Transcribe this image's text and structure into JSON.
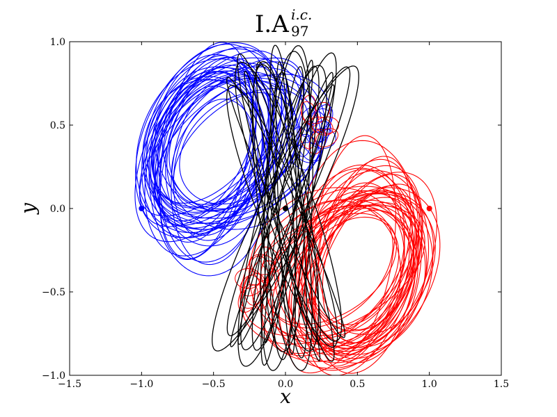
{
  "chart_data": {
    "type": "line",
    "title": {
      "main": "I.A",
      "superscript": "i.c.",
      "subscript": "97"
    },
    "xlabel": "x",
    "ylabel": "y",
    "xlim": [
      -1.5,
      1.5
    ],
    "ylim": [
      -1.0,
      1.0
    ],
    "xticks": [
      -1.5,
      -1.0,
      -0.5,
      0.0,
      0.5,
      1.0,
      1.5
    ],
    "xtick_labels": [
      "−1.5",
      "−1.0",
      "−0.5",
      "0.0",
      "0.5",
      "1.0",
      "1.5"
    ],
    "yticks": [
      -1.0,
      -0.5,
      0.0,
      0.5,
      1.0
    ],
    "ytick_labels": [
      "−1.0",
      "−0.5",
      "0.0",
      "0.5",
      "1.0"
    ],
    "grid": false,
    "series": [
      {
        "color": "#0000ff",
        "initial_position": [
          -1.0,
          0.0
        ],
        "extent": {
          "x": [
            -1.05,
            0.55
          ],
          "y": [
            -0.92,
            0.97
          ]
        }
      },
      {
        "color": "#ff0000",
        "initial_position": [
          1.0,
          0.0
        ],
        "extent": {
          "x": [
            -0.55,
            1.05
          ],
          "y": [
            -0.97,
            0.92
          ]
        }
      },
      {
        "color": "#000000",
        "initial_position": [
          0.0,
          0.0
        ],
        "extent": {
          "x": [
            -0.8,
            0.8
          ],
          "y": [
            -0.97,
            0.97
          ]
        }
      }
    ]
  }
}
